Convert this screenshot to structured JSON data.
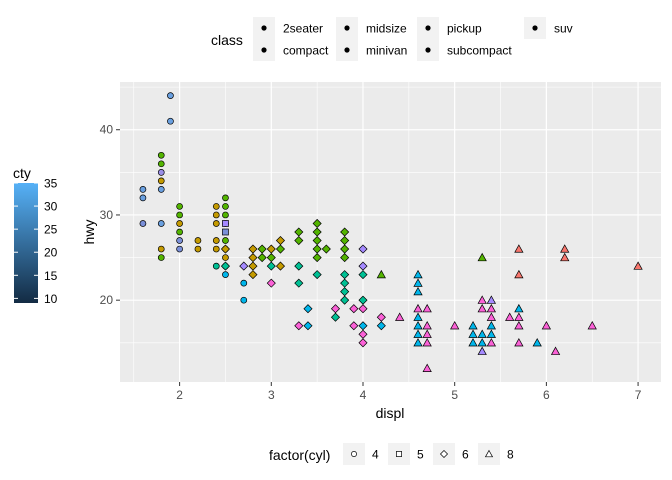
{
  "chart_data": {
    "type": "scatter",
    "xlabel": "displ",
    "ylabel": "hwy",
    "xlim": [
      1.35,
      7.25
    ],
    "ylim": [
      10.4,
      45.6
    ],
    "x_ticks": [
      2,
      3,
      4,
      5,
      6,
      7
    ],
    "y_ticks": [
      20,
      30,
      40
    ],
    "grid": true,
    "legends": {
      "class": {
        "title": "class",
        "position": "top",
        "entries": [
          "2seater",
          "compact",
          "midsize",
          "minivan",
          "pickup",
          "subcompact",
          "suv"
        ]
      },
      "color": {
        "title": "cty",
        "position": "left",
        "ticks": [
          35,
          30,
          25,
          20,
          15,
          10
        ],
        "range": [
          9,
          35
        ],
        "low_color": "#132B43",
        "high_color": "#56B1F7"
      },
      "shape": {
        "title": "factor(cyl)",
        "position": "bottom",
        "entries": [
          "4",
          "5",
          "6",
          "8"
        ]
      }
    },
    "fill_colors": {
      "2seater": "#F8766D",
      "compact": "#C49A00",
      "midsize": "#53B400",
      "minivan": "#00C094",
      "pickup": "#00B6EB",
      "subcompact": "#A58AFF",
      "suv": "#FB61D7"
    },
    "series": [
      {
        "name": "4",
        "shape": "circle",
        "points": [
          [
            1.6,
            33,
            "#6AA0E0"
          ],
          [
            1.6,
            32,
            "#6AA0E0"
          ],
          [
            1.6,
            29,
            "#7A8FD8"
          ],
          [
            1.8,
            29,
            "#6AA0E0"
          ],
          [
            1.8,
            33,
            "#6AA0E0"
          ],
          [
            1.8,
            35,
            "#9A8FE8"
          ],
          [
            1.8,
            37,
            "#53B400"
          ],
          [
            1.8,
            36,
            "#53B400"
          ],
          [
            1.8,
            34,
            "#C49A00"
          ],
          [
            1.8,
            26,
            "#C49A00"
          ],
          [
            1.8,
            25,
            "#53B400"
          ],
          [
            1.9,
            44,
            "#6AA0E0"
          ],
          [
            1.9,
            41,
            "#6AA0E0"
          ],
          [
            2.0,
            26,
            "#7A8FD8"
          ],
          [
            2.0,
            27,
            "#7A8FD8"
          ],
          [
            2.0,
            28,
            "#53B400"
          ],
          [
            2.0,
            29,
            "#C49A00"
          ],
          [
            2.0,
            30,
            "#53B400"
          ],
          [
            2.0,
            31,
            "#53B400"
          ],
          [
            2.2,
            26,
            "#C49A00"
          ],
          [
            2.2,
            27,
            "#C49A00"
          ],
          [
            2.4,
            26,
            "#C49A00"
          ],
          [
            2.4,
            27,
            "#C49A00"
          ],
          [
            2.4,
            29,
            "#C49A00"
          ],
          [
            2.4,
            30,
            "#C49A00"
          ],
          [
            2.4,
            31,
            "#C49A00"
          ],
          [
            2.4,
            24,
            "#00C094"
          ],
          [
            2.5,
            26,
            "#53B400"
          ],
          [
            2.5,
            27,
            "#53B400"
          ],
          [
            2.5,
            29,
            "#53B400"
          ],
          [
            2.5,
            30,
            "#53B400"
          ],
          [
            2.5,
            31,
            "#53B400"
          ],
          [
            2.5,
            32,
            "#53B400"
          ],
          [
            2.5,
            24,
            "#00C094"
          ],
          [
            2.5,
            25,
            "#C49A00"
          ],
          [
            2.5,
            23,
            "#00B6EB"
          ],
          [
            2.7,
            22,
            "#00B6EB"
          ],
          [
            2.7,
            20,
            "#00B6EB"
          ]
        ]
      },
      {
        "name": "5",
        "shape": "square",
        "points": [
          [
            2.5,
            29,
            "#A58AFF"
          ],
          [
            2.5,
            28,
            "#7A8FD8"
          ]
        ]
      },
      {
        "name": "6",
        "shape": "diamond",
        "points": [
          [
            2.5,
            26,
            "#C49A00"
          ],
          [
            2.5,
            24,
            "#00C094"
          ],
          [
            2.7,
            24,
            "#A58AFF"
          ],
          [
            2.8,
            26,
            "#C49A00"
          ],
          [
            2.8,
            25,
            "#C49A00"
          ],
          [
            2.8,
            24,
            "#C49A00"
          ],
          [
            2.8,
            23,
            "#C49A00"
          ],
          [
            2.9,
            26,
            "#53B400"
          ],
          [
            2.9,
            25,
            "#53B400"
          ],
          [
            3.0,
            26,
            "#C49A00"
          ],
          [
            3.0,
            25,
            "#53B400"
          ],
          [
            3.0,
            24,
            "#00C094"
          ],
          [
            3.0,
            22,
            "#FB61D7"
          ],
          [
            3.1,
            27,
            "#C49A00"
          ],
          [
            3.1,
            26,
            "#53B400"
          ],
          [
            3.1,
            24,
            "#C49A00"
          ],
          [
            3.3,
            28,
            "#53B400"
          ],
          [
            3.3,
            27,
            "#53B400"
          ],
          [
            3.3,
            24,
            "#00C094"
          ],
          [
            3.3,
            22,
            "#00C094"
          ],
          [
            3.3,
            17,
            "#FB61D7"
          ],
          [
            3.4,
            19,
            "#00B6EB"
          ],
          [
            3.4,
            17,
            "#00B6EB"
          ],
          [
            3.5,
            29,
            "#53B400"
          ],
          [
            3.5,
            28,
            "#53B400"
          ],
          [
            3.5,
            27,
            "#53B400"
          ],
          [
            3.5,
            26,
            "#53B400"
          ],
          [
            3.5,
            25,
            "#53B400"
          ],
          [
            3.5,
            23,
            "#00C094"
          ],
          [
            3.6,
            26,
            "#53B400"
          ],
          [
            3.7,
            19,
            "#FB61D7"
          ],
          [
            3.7,
            18,
            "#00C094"
          ],
          [
            3.8,
            28,
            "#53B400"
          ],
          [
            3.8,
            27,
            "#53B400"
          ],
          [
            3.8,
            26,
            "#53B400"
          ],
          [
            3.8,
            25,
            "#53B400"
          ],
          [
            3.8,
            23,
            "#00C094"
          ],
          [
            3.8,
            22,
            "#00C094"
          ],
          [
            3.8,
            21,
            "#00C094"
          ],
          [
            3.8,
            20,
            "#00C094"
          ],
          [
            3.9,
            19,
            "#FB61D7"
          ],
          [
            3.9,
            17,
            "#FB61D7"
          ],
          [
            4.0,
            26,
            "#A58AFF"
          ],
          [
            4.0,
            24,
            "#A58AFF"
          ],
          [
            4.0,
            23,
            "#00C094"
          ],
          [
            4.0,
            20,
            "#00C094"
          ],
          [
            4.0,
            19,
            "#FB61D7"
          ],
          [
            4.0,
            17,
            "#00B6EB"
          ],
          [
            4.0,
            16,
            "#FB61D7"
          ],
          [
            4.0,
            15,
            "#FB61D7"
          ],
          [
            4.2,
            18,
            "#FB61D7"
          ],
          [
            4.2,
            17,
            "#00B6EB"
          ]
        ]
      },
      {
        "name": "8",
        "shape": "triangle",
        "points": [
          [
            4.2,
            23,
            "#53B400"
          ],
          [
            4.4,
            18,
            "#FB61D7"
          ],
          [
            4.6,
            23,
            "#00B6EB"
          ],
          [
            4.6,
            22,
            "#00B6EB"
          ],
          [
            4.6,
            21,
            "#00B6EB"
          ],
          [
            4.6,
            19,
            "#FB61D7"
          ],
          [
            4.6,
            18,
            "#00B6EB"
          ],
          [
            4.6,
            17,
            "#00B6EB"
          ],
          [
            4.6,
            16,
            "#00B6EB"
          ],
          [
            4.6,
            15,
            "#00B6EB"
          ],
          [
            4.7,
            19,
            "#FB61D7"
          ],
          [
            4.7,
            17,
            "#FB61D7"
          ],
          [
            4.7,
            16,
            "#FB61D7"
          ],
          [
            4.7,
            15,
            "#FB61D7"
          ],
          [
            4.7,
            12,
            "#FB61D7"
          ],
          [
            5.0,
            17,
            "#FB61D7"
          ],
          [
            5.2,
            17,
            "#00B6EB"
          ],
          [
            5.2,
            16,
            "#00B6EB"
          ],
          [
            5.2,
            15,
            "#00B6EB"
          ],
          [
            5.3,
            25,
            "#53B400"
          ],
          [
            5.3,
            20,
            "#FB61D7"
          ],
          [
            5.3,
            19,
            "#FB61D7"
          ],
          [
            5.3,
            16,
            "#00B6EB"
          ],
          [
            5.3,
            15,
            "#00B6EB"
          ],
          [
            5.3,
            14,
            "#A58AFF"
          ],
          [
            5.4,
            20,
            "#A58AFF"
          ],
          [
            5.4,
            19,
            "#FB61D7"
          ],
          [
            5.4,
            18,
            "#FB61D7"
          ],
          [
            5.4,
            17,
            "#00B6EB"
          ],
          [
            5.4,
            16,
            "#00B6EB"
          ],
          [
            5.4,
            15,
            "#FB61D7"
          ],
          [
            5.6,
            18,
            "#FB61D7"
          ],
          [
            5.7,
            26,
            "#F8766D"
          ],
          [
            5.7,
            23,
            "#F8766D"
          ],
          [
            5.7,
            19,
            "#00B6EB"
          ],
          [
            5.7,
            18,
            "#FB61D7"
          ],
          [
            5.7,
            17,
            "#FB61D7"
          ],
          [
            5.7,
            15,
            "#FB61D7"
          ],
          [
            5.9,
            15,
            "#00B6EB"
          ],
          [
            6.0,
            17,
            "#FB61D7"
          ],
          [
            6.1,
            14,
            "#FB61D7"
          ],
          [
            6.2,
            26,
            "#F8766D"
          ],
          [
            6.2,
            25,
            "#F8766D"
          ],
          [
            6.5,
            17,
            "#FB61D7"
          ],
          [
            7.0,
            24,
            "#F8766D"
          ]
        ]
      }
    ]
  }
}
